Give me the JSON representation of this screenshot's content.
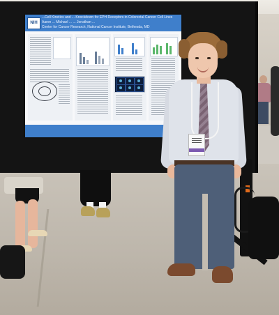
{
  "photo": {
    "poster": {
      "header_logo_text": "NIH",
      "title_lines": [
        "...Cell Kinetics and ... Knockdown for EPH Receptors in Colorectal Cancer Cell Lines",
        "Aaron ...  Michael ...  ...  Jonathan ...",
        "Center for Cancer Research, National Cancer Institute, Bethesda, MD"
      ]
    }
  }
}
